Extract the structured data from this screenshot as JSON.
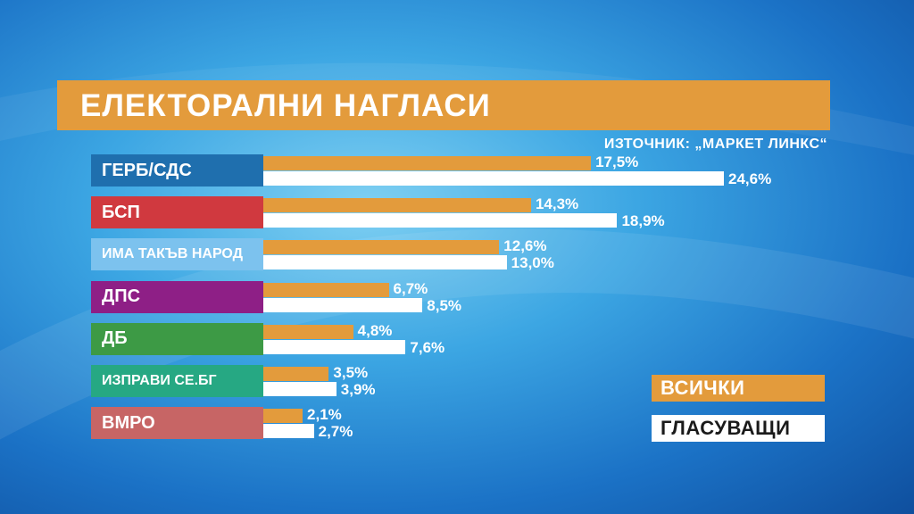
{
  "title": "ЕЛЕКТОРАЛНИ НАГЛАСИ",
  "source": "ИЗТОЧНИК: „МАРКЕТ ЛИНКС“",
  "colors": {
    "all": "#e39b3c",
    "voters": "#ffffff"
  },
  "chart_data": {
    "type": "bar",
    "orientation": "horizontal",
    "title": "ЕЛЕКТОРАЛНИ НАГЛАСИ",
    "categories": [
      "ГЕРБ/СДС",
      "БСП",
      "ИМА ТАКЪВ НАРОД",
      "ДПС",
      "ДБ",
      "ИЗПРАВИ СЕ.БГ",
      "ВМРО"
    ],
    "category_colors": [
      "#1f6fae",
      "#d0393f",
      "#7cc2ee",
      "#8e1f86",
      "#3d9a45",
      "#26a883",
      "#c76565"
    ],
    "series": [
      {
        "name": "ВСИЧКИ",
        "values": [
          17.5,
          14.3,
          12.6,
          6.7,
          4.8,
          3.5,
          2.1
        ],
        "labels": [
          "17,5%",
          "14,3%",
          "12,6%",
          "6,7%",
          "4,8%",
          "3,5%",
          "2,1%"
        ]
      },
      {
        "name": "ГЛАСУВАЩИ",
        "values": [
          24.6,
          18.9,
          13.0,
          8.5,
          7.6,
          3.9,
          2.7
        ],
        "labels": [
          "24,6%",
          "18,9%",
          "13,0%",
          "8,5%",
          "7,6%",
          "3,9%",
          "2,7%"
        ]
      }
    ],
    "xlim": [
      0,
      24.6
    ],
    "grid": false,
    "legend_placement": "bottom-right"
  }
}
